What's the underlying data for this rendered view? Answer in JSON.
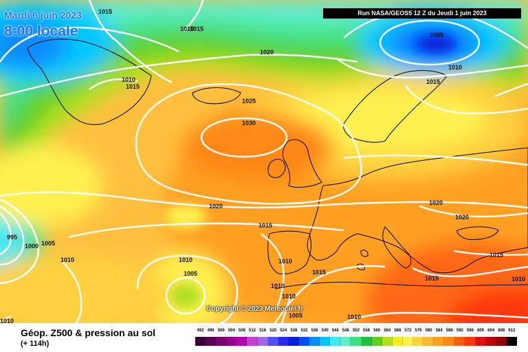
{
  "header": {
    "date_line": "Mardi 6 juin 2023",
    "time_line": "8:00 locale",
    "run_info": "Run NASA/GEOS5 12 Z du Jeudi 1 juin 2023"
  },
  "map": {
    "isobars": [
      {
        "id": "iso-1015-a",
        "label": "1015"
      },
      {
        "id": "iso-1010-a",
        "label": "1010"
      },
      {
        "id": "iso-1015-b",
        "label": "1015"
      },
      {
        "id": "iso-1020-a",
        "label": "1020"
      },
      {
        "id": "iso-1005-a",
        "label": "1005"
      },
      {
        "id": "iso-1010-b",
        "label": "1010"
      },
      {
        "id": "iso-1015-c",
        "label": "1015"
      },
      {
        "id": "iso-1010-c",
        "label": "1010"
      },
      {
        "id": "iso-1015-d",
        "label": "1015"
      },
      {
        "id": "iso-1025",
        "label": "1025"
      },
      {
        "id": "iso-1030",
        "label": "1030"
      },
      {
        "id": "iso-1020-b",
        "label": "1020"
      },
      {
        "id": "iso-1020-c",
        "label": "1020"
      },
      {
        "id": "iso-1020-d",
        "label": "1020"
      },
      {
        "id": "iso-1015-e",
        "label": "1015"
      },
      {
        "id": "iso-995",
        "label": "995"
      },
      {
        "id": "iso-1000",
        "label": "1000"
      },
      {
        "id": "iso-1005-b",
        "label": "1005"
      },
      {
        "id": "iso-1010-d",
        "label": "1010"
      },
      {
        "id": "iso-1010-e",
        "label": "1010"
      },
      {
        "id": "iso-1005-c",
        "label": "1005"
      },
      {
        "id": "iso-1010-f",
        "label": "1010"
      },
      {
        "id": "iso-1015-f",
        "label": "1015"
      },
      {
        "id": "iso-1010-g",
        "label": "1010"
      },
      {
        "id": "iso-1005-d",
        "label": "1005"
      },
      {
        "id": "iso-1015-g",
        "label": "1015"
      },
      {
        "id": "iso-1015-h",
        "label": "1015"
      },
      {
        "id": "iso-1010-h",
        "label": "1010"
      },
      {
        "id": "iso-1010-i",
        "label": "1010"
      },
      {
        "id": "iso-1010-j",
        "label": "1010"
      },
      {
        "id": "iso-1010-k",
        "label": "1010"
      }
    ],
    "copyright": "Copyright © 2023 Meteociel.fr"
  },
  "legend": {
    "title": "Géop. Z500 & pression au sol",
    "subtitle": "(+ 114h)",
    "scale": [
      {
        "value": "492",
        "color": "#3a0033"
      },
      {
        "value": "496",
        "color": "#5a0050"
      },
      {
        "value": "500",
        "color": "#7a0070"
      },
      {
        "value": "504",
        "color": "#9a0090"
      },
      {
        "value": "508",
        "color": "#b400b0"
      },
      {
        "value": "512",
        "color": "#c040d0"
      },
      {
        "value": "516",
        "color": "#9a6ae8"
      },
      {
        "value": "520",
        "color": "#5050ff"
      },
      {
        "value": "524",
        "color": "#2828ff"
      },
      {
        "value": "528",
        "color": "#0a20d8"
      },
      {
        "value": "532",
        "color": "#0050ff"
      },
      {
        "value": "536",
        "color": "#0a8cff"
      },
      {
        "value": "540",
        "color": "#00c8ff"
      },
      {
        "value": "544",
        "color": "#40e8f0"
      },
      {
        "value": "548",
        "color": "#60f0c0"
      },
      {
        "value": "552",
        "color": "#40e080"
      },
      {
        "value": "556",
        "color": "#20c040"
      },
      {
        "value": "560",
        "color": "#60d020"
      },
      {
        "value": "564",
        "color": "#b0e020"
      },
      {
        "value": "568",
        "color": "#f0f020"
      },
      {
        "value": "572",
        "color": "#fff050"
      },
      {
        "value": "576",
        "color": "#ffd040"
      },
      {
        "value": "580",
        "color": "#ffb830"
      },
      {
        "value": "584",
        "color": "#ffa020"
      },
      {
        "value": "588",
        "color": "#ff8818"
      },
      {
        "value": "592",
        "color": "#ff6010"
      },
      {
        "value": "596",
        "color": "#ff3810"
      },
      {
        "value": "600",
        "color": "#e01010"
      },
      {
        "value": "604",
        "color": "#b80808"
      },
      {
        "value": "608",
        "color": "#900000"
      },
      {
        "value": "612",
        "color": "#000000"
      }
    ]
  }
}
